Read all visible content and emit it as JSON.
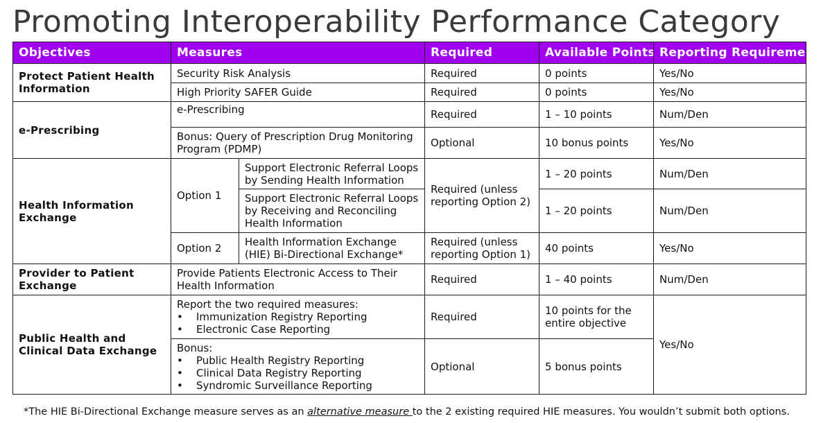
{
  "title": "Promoting Interoperability Performance Category",
  "headers": {
    "objectives": "Objectives",
    "measures": "Measures",
    "required": "Required",
    "points": "Available Points",
    "reporting": "Reporting Requireme"
  },
  "rows": {
    "protect": {
      "objective": "Protect Patient Health Information",
      "sra": {
        "measure": "Security Risk Analysis",
        "required": "Required",
        "points": "0 points",
        "reporting": "Yes/No"
      },
      "safer": {
        "measure": "High Priority SAFER Guide",
        "required": "Required",
        "points": "0 points",
        "reporting": "Yes/No"
      }
    },
    "eprescribing": {
      "objective": "e-Prescribing",
      "erx": {
        "measure": "e-Prescribing",
        "required": "Required",
        "points": "1 – 10 points",
        "reporting": "Num/Den"
      },
      "pdmp": {
        "measure": "Bonus: Query of Prescription Drug Monitoring Program (PDMP)",
        "required": "Optional",
        "points": "10 bonus points",
        "reporting": "Yes/No"
      }
    },
    "hie": {
      "objective": "Health Information Exchange",
      "option1": "Option 1",
      "option1_required": "Required (unless reporting Option 2)",
      "sending": {
        "measure": "Support Electronic Referral Loops by Sending Health Information",
        "points": "1 – 20 points",
        "reporting": "Num/Den"
      },
      "receiving": {
        "measure": "Support Electronic Referral Loops by Receiving and Reconciling Health Information",
        "points": "1 – 20 points",
        "reporting": "Num/Den"
      },
      "option2": "Option 2",
      "bidirectional": {
        "measure": "Health Information Exchange (HIE) Bi-Directional Exchange*",
        "required": "Required (unless reporting Option 1)",
        "points": "40 points",
        "reporting": "Yes/No"
      }
    },
    "provider": {
      "objective": "Provider to Patient Exchange",
      "access": {
        "measure": "Provide Patients Electronic Access to Their Health Information",
        "required": "Required",
        "points": "1 – 40 points",
        "reporting": "Num/Den"
      }
    },
    "public": {
      "objective": "Public Health and Clinical Data Exchange",
      "reporting": "Yes/No",
      "required_block": {
        "intro": "Report the two required measures:",
        "items": [
          "Immunization Registry Reporting",
          "Electronic Case Reporting"
        ],
        "required": "Required",
        "points": "10 points for the entire objective"
      },
      "bonus_block": {
        "intro": "Bonus:",
        "items": [
          "Public Health Registry Reporting",
          "Clinical Data Registry Reporting",
          "Syndromic Surveillance Reporting"
        ],
        "required": "Optional",
        "points": "5 bonus points"
      }
    }
  },
  "footnote": {
    "before": "*The HIE Bi-Directional Exchange measure serves as an ",
    "emphasis": "alternative measure ",
    "after": "to the 2 existing required HIE measures. You wouldn’t submit both options."
  }
}
